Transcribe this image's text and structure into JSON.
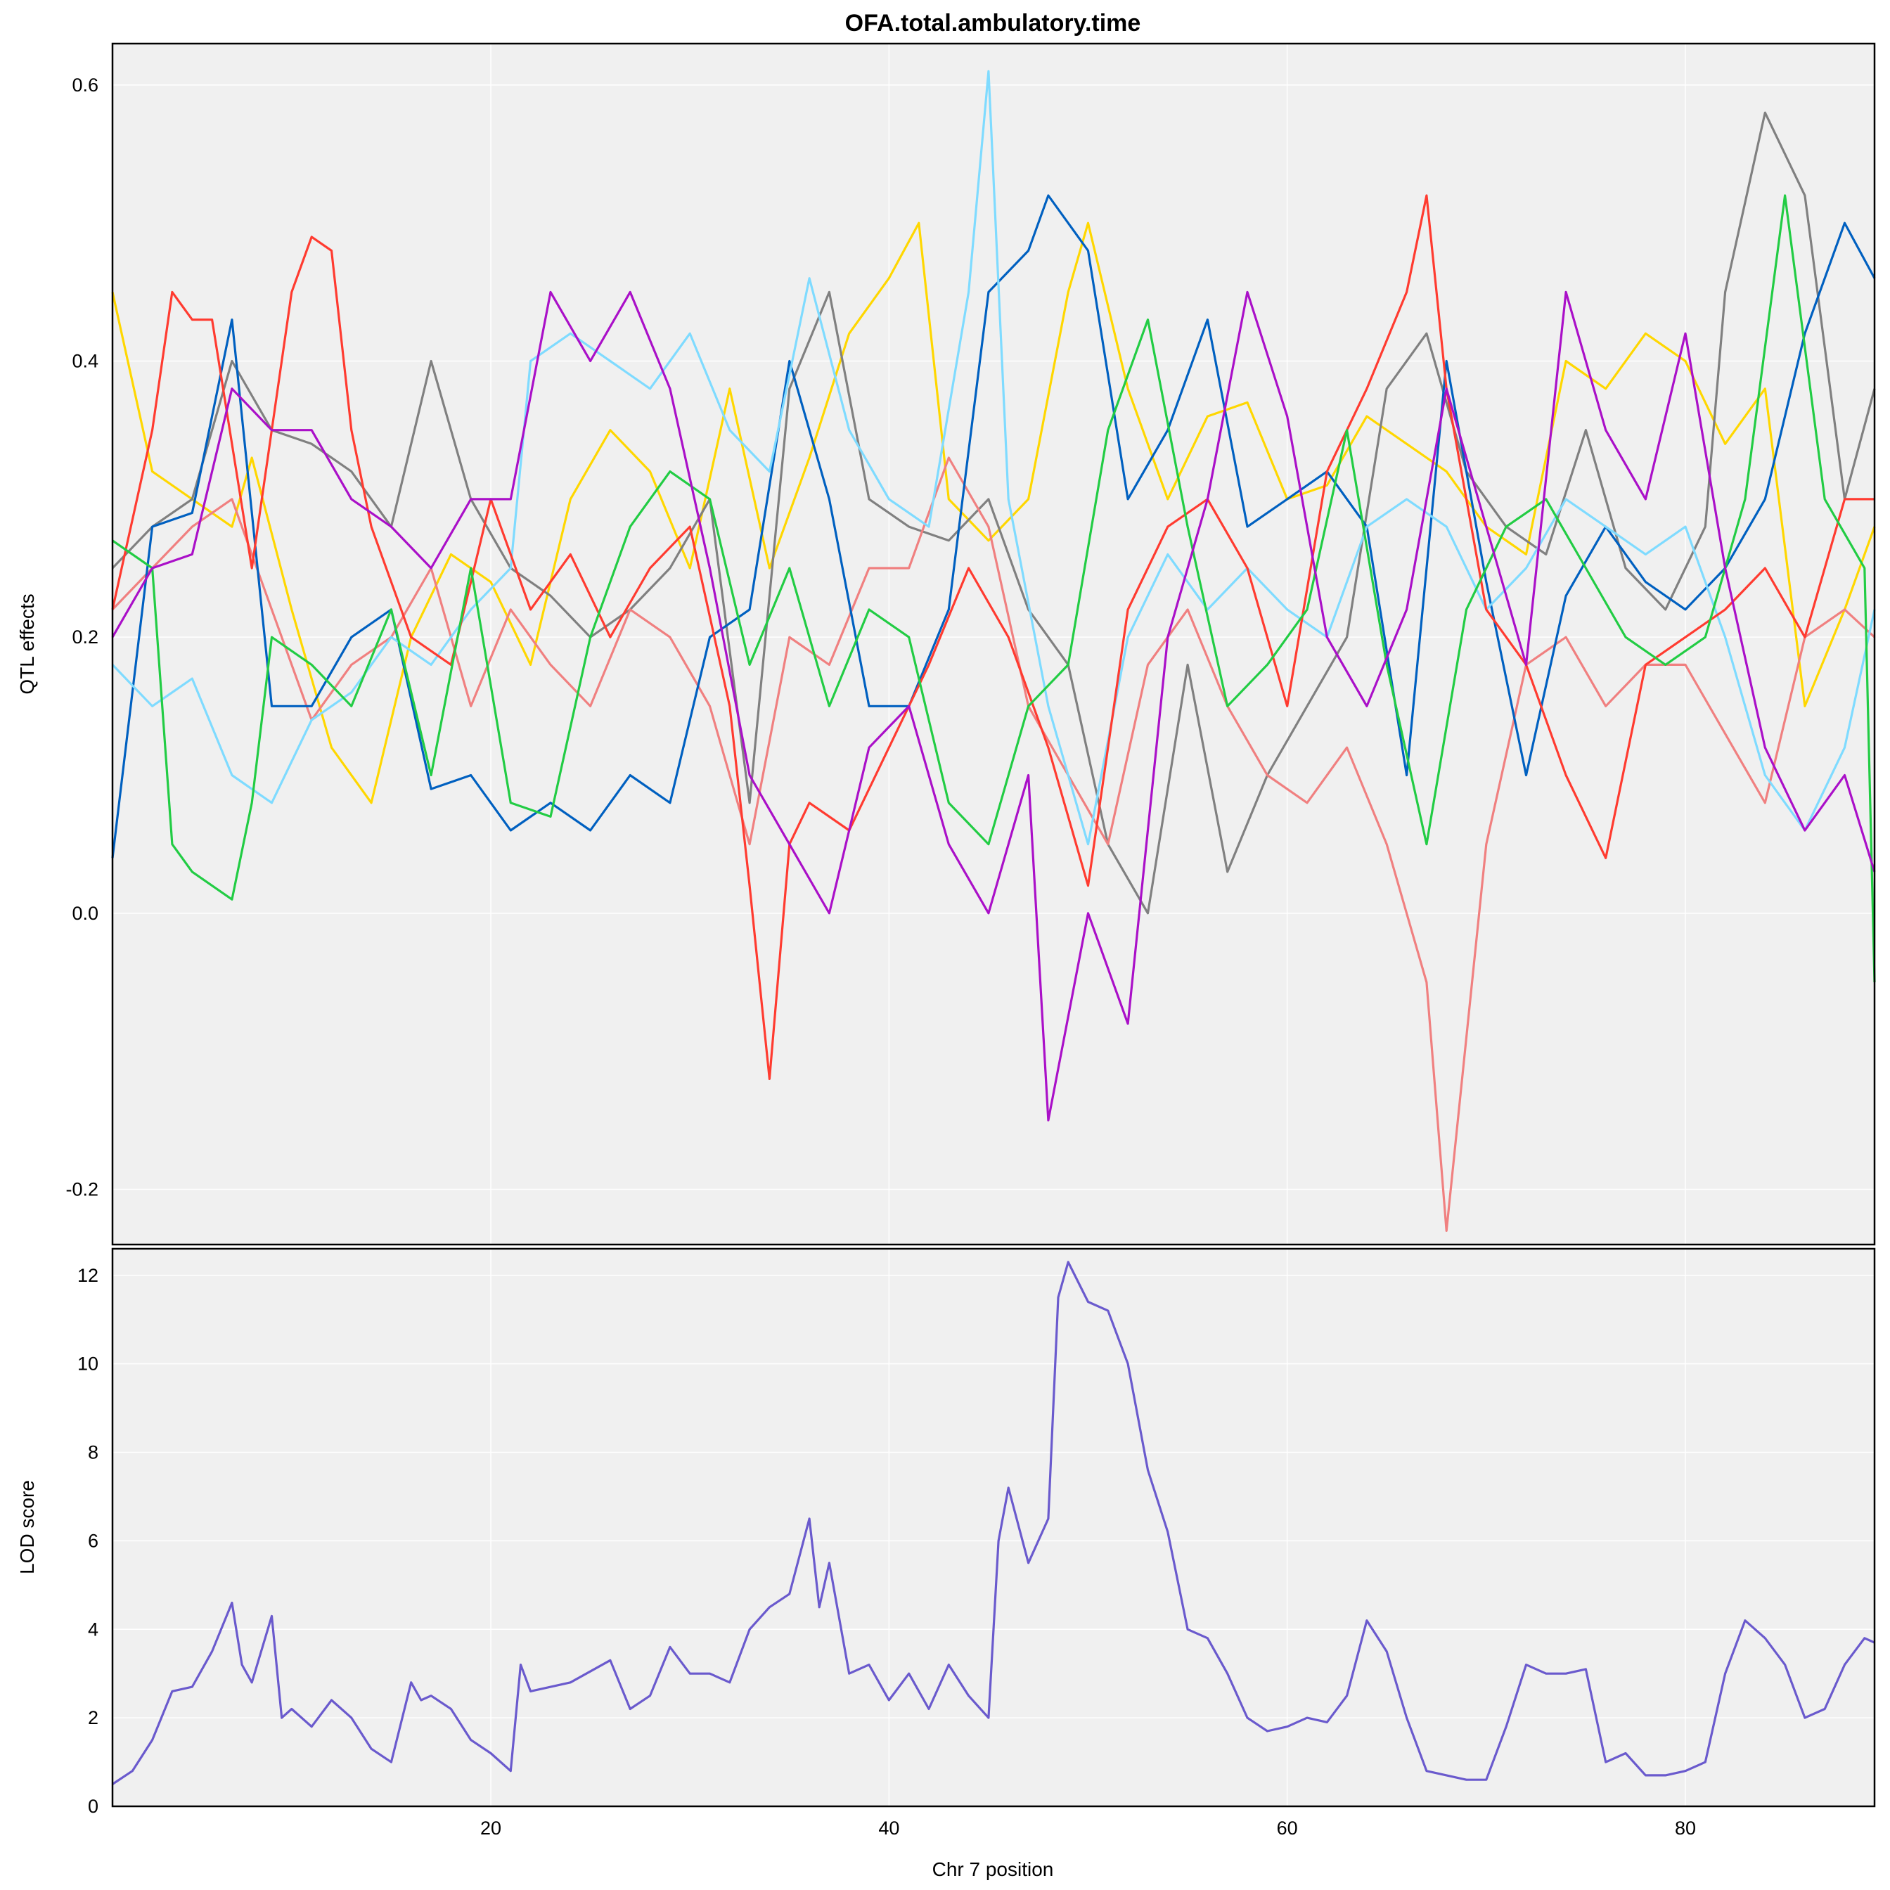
{
  "chart_data": [
    {
      "type": "line",
      "title": "OFA.total.ambulatory.time",
      "xlabel": "",
      "ylabel": "QTL effects",
      "xlim": [
        1,
        89.5
      ],
      "ylim": [
        -0.24,
        0.63
      ],
      "x_ticks": [
        20,
        40,
        60,
        80
      ],
      "y_ticks": [
        -0.2,
        0.0,
        0.2,
        0.4,
        0.6
      ],
      "y_tick_labels": [
        "-0.2",
        "0.0",
        "0.2",
        "0.4",
        "0.6"
      ],
      "grid": true,
      "background": "#f0f0f0",
      "series": [
        {
          "color": "#ffd700",
          "x": [
            1,
            3,
            5,
            7,
            8,
            10,
            12,
            14,
            16,
            18,
            20,
            22,
            24,
            26,
            28,
            30,
            32,
            34,
            36,
            38,
            40,
            41.5,
            43,
            45,
            47,
            49,
            50,
            52,
            54,
            56,
            58,
            60,
            62,
            64,
            66,
            68,
            70,
            72,
            74,
            76,
            78,
            80,
            82,
            84,
            86,
            88,
            89.5
          ],
          "y": [
            0.45,
            0.32,
            0.3,
            0.28,
            0.33,
            0.22,
            0.12,
            0.08,
            0.2,
            0.26,
            0.24,
            0.18,
            0.3,
            0.35,
            0.32,
            0.25,
            0.38,
            0.25,
            0.33,
            0.42,
            0.46,
            0.5,
            0.3,
            0.27,
            0.3,
            0.45,
            0.5,
            0.38,
            0.3,
            0.36,
            0.37,
            0.3,
            0.31,
            0.36,
            0.34,
            0.32,
            0.28,
            0.26,
            0.4,
            0.38,
            0.42,
            0.4,
            0.34,
            0.38,
            0.15,
            0.22,
            0.28
          ]
        },
        {
          "color": "#808080",
          "x": [
            1,
            3,
            5,
            7,
            9,
            11,
            13,
            15,
            17,
            19,
            21,
            23,
            25,
            27,
            29,
            31,
            33,
            35,
            37,
            39,
            41,
            43,
            45,
            47,
            49,
            51,
            53,
            55,
            57,
            59,
            61,
            63,
            65,
            67,
            69,
            71,
            73,
            75,
            77,
            79,
            81,
            82,
            84,
            86,
            88,
            89.5
          ],
          "y": [
            0.25,
            0.28,
            0.3,
            0.4,
            0.35,
            0.34,
            0.32,
            0.28,
            0.4,
            0.3,
            0.25,
            0.23,
            0.2,
            0.22,
            0.25,
            0.3,
            0.08,
            0.38,
            0.45,
            0.3,
            0.28,
            0.27,
            0.3,
            0.22,
            0.18,
            0.05,
            0.0,
            0.18,
            0.03,
            0.1,
            0.15,
            0.2,
            0.38,
            0.42,
            0.32,
            0.28,
            0.26,
            0.35,
            0.25,
            0.22,
            0.28,
            0.45,
            0.58,
            0.52,
            0.3,
            0.38
          ]
        },
        {
          "color": "#ffffff",
          "x": [],
          "y": []
        },
        {
          "color": "#f08080",
          "x": [
            1,
            3,
            5,
            7,
            9,
            11,
            13,
            15,
            17,
            19,
            21,
            23,
            25,
            27,
            29,
            31,
            33,
            35,
            37,
            39,
            41,
            43,
            45,
            47,
            49,
            51,
            53,
            55,
            57,
            59,
            61,
            63,
            65,
            67,
            68,
            70,
            72,
            74,
            76,
            78,
            80,
            82,
            84,
            86,
            88,
            89.5
          ],
          "y": [
            0.22,
            0.25,
            0.28,
            0.3,
            0.22,
            0.14,
            0.18,
            0.2,
            0.25,
            0.15,
            0.22,
            0.18,
            0.15,
            0.22,
            0.2,
            0.15,
            0.05,
            0.2,
            0.18,
            0.25,
            0.25,
            0.33,
            0.28,
            0.15,
            0.1,
            0.05,
            0.18,
            0.22,
            0.15,
            0.1,
            0.08,
            0.12,
            0.05,
            -0.05,
            -0.23,
            0.05,
            0.18,
            0.2,
            0.15,
            0.18,
            0.18,
            0.13,
            0.08,
            0.2,
            0.22,
            0.2
          ]
        },
        {
          "color": "#0060c0",
          "x": [
            1,
            3,
            5,
            7,
            9,
            11,
            13,
            15,
            17,
            19,
            21,
            23,
            25,
            27,
            29,
            31,
            33,
            35,
            37,
            39,
            41,
            43,
            45,
            47,
            48,
            50,
            52,
            54,
            56,
            58,
            60,
            62,
            64,
            66,
            68,
            70,
            72,
            74,
            76,
            78,
            80,
            82,
            84,
            86,
            88,
            89.5
          ],
          "y": [
            0.04,
            0.28,
            0.29,
            0.43,
            0.15,
            0.15,
            0.2,
            0.22,
            0.09,
            0.1,
            0.06,
            0.08,
            0.06,
            0.1,
            0.08,
            0.2,
            0.22,
            0.4,
            0.3,
            0.15,
            0.15,
            0.22,
            0.45,
            0.48,
            0.52,
            0.48,
            0.3,
            0.35,
            0.43,
            0.28,
            0.3,
            0.32,
            0.28,
            0.1,
            0.4,
            0.24,
            0.1,
            0.23,
            0.28,
            0.24,
            0.22,
            0.25,
            0.3,
            0.42,
            0.5,
            0.46
          ]
        },
        {
          "color": "#7fdbff",
          "x": [
            1,
            3,
            5,
            7,
            9,
            11,
            13,
            15,
            17,
            19,
            21,
            22,
            24,
            26,
            28,
            30,
            32,
            34,
            36,
            38,
            40,
            42,
            44,
            45,
            46,
            48,
            50,
            52,
            54,
            56,
            58,
            60,
            62,
            64,
            66,
            68,
            70,
            72,
            74,
            76,
            78,
            80,
            82,
            84,
            86,
            88,
            89.5
          ],
          "y": [
            0.18,
            0.15,
            0.17,
            0.1,
            0.08,
            0.14,
            0.16,
            0.2,
            0.18,
            0.22,
            0.25,
            0.4,
            0.42,
            0.4,
            0.38,
            0.42,
            0.35,
            0.32,
            0.46,
            0.35,
            0.3,
            0.28,
            0.45,
            0.61,
            0.3,
            0.15,
            0.05,
            0.2,
            0.26,
            0.22,
            0.25,
            0.22,
            0.2,
            0.28,
            0.3,
            0.28,
            0.22,
            0.25,
            0.3,
            0.28,
            0.26,
            0.28,
            0.2,
            0.1,
            0.06,
            0.12,
            0.22
          ]
        },
        {
          "color": "#ff3b30",
          "x": [
            1,
            3,
            4,
            5,
            6,
            8,
            10,
            11,
            12,
            13,
            14,
            16,
            18,
            20,
            22,
            24,
            26,
            28,
            30,
            32,
            33,
            34,
            35,
            36,
            38,
            40,
            42,
            44,
            46,
            48,
            50,
            52,
            54,
            56,
            58,
            60,
            62,
            64,
            66,
            67,
            68,
            70,
            72,
            74,
            76,
            78,
            80,
            82,
            84,
            86,
            88,
            89.5
          ],
          "y": [
            0.22,
            0.35,
            0.45,
            0.43,
            0.43,
            0.25,
            0.45,
            0.49,
            0.48,
            0.35,
            0.28,
            0.2,
            0.18,
            0.3,
            0.22,
            0.26,
            0.2,
            0.25,
            0.28,
            0.15,
            0.02,
            -0.12,
            0.05,
            0.08,
            0.06,
            0.12,
            0.18,
            0.25,
            0.2,
            0.12,
            0.02,
            0.22,
            0.28,
            0.3,
            0.25,
            0.15,
            0.32,
            0.38,
            0.45,
            0.52,
            0.38,
            0.22,
            0.18,
            0.1,
            0.04,
            0.18,
            0.2,
            0.22,
            0.25,
            0.2,
            0.3,
            0.3
          ]
        },
        {
          "color": "#22cc44",
          "x": [
            1,
            3,
            4,
            5,
            7,
            8,
            9,
            11,
            13,
            15,
            17,
            19,
            21,
            23,
            25,
            27,
            29,
            31,
            33,
            35,
            37,
            39,
            41,
            43,
            45,
            47,
            49,
            51,
            53,
            55,
            57,
            59,
            61,
            63,
            65,
            67,
            69,
            71,
            73,
            75,
            77,
            79,
            81,
            83,
            85,
            87,
            89,
            89.5
          ],
          "y": [
            0.27,
            0.25,
            0.05,
            0.03,
            0.01,
            0.08,
            0.2,
            0.18,
            0.15,
            0.22,
            0.1,
            0.25,
            0.08,
            0.07,
            0.2,
            0.28,
            0.32,
            0.3,
            0.18,
            0.25,
            0.15,
            0.22,
            0.2,
            0.08,
            0.05,
            0.15,
            0.18,
            0.35,
            0.43,
            0.28,
            0.15,
            0.18,
            0.22,
            0.35,
            0.18,
            0.05,
            0.22,
            0.28,
            0.3,
            0.25,
            0.2,
            0.18,
            0.2,
            0.3,
            0.52,
            0.3,
            0.25,
            -0.05
          ]
        },
        {
          "color": "#aa10c8",
          "x": [
            1,
            3,
            5,
            7,
            9,
            11,
            13,
            15,
            17,
            19,
            21,
            23,
            25,
            27,
            29,
            31,
            33,
            35,
            37,
            39,
            41,
            43,
            45,
            47,
            48,
            50,
            52,
            54,
            56,
            58,
            60,
            62,
            64,
            66,
            68,
            70,
            72,
            74,
            76,
            78,
            80,
            82,
            84,
            86,
            88,
            89.5
          ],
          "y": [
            0.2,
            0.25,
            0.26,
            0.38,
            0.35,
            0.35,
            0.3,
            0.28,
            0.25,
            0.3,
            0.3,
            0.45,
            0.4,
            0.45,
            0.38,
            0.25,
            0.1,
            0.05,
            0.0,
            0.12,
            0.15,
            0.05,
            0.0,
            0.1,
            -0.15,
            0.0,
            -0.08,
            0.2,
            0.3,
            0.45,
            0.36,
            0.2,
            0.15,
            0.22,
            0.38,
            0.28,
            0.18,
            0.45,
            0.35,
            0.3,
            0.42,
            0.25,
            0.12,
            0.06,
            0.1,
            0.03
          ]
        }
      ]
    },
    {
      "type": "line",
      "title": "",
      "xlabel": "Chr 7 position",
      "ylabel": "LOD score",
      "xlim": [
        1,
        89.5
      ],
      "ylim": [
        0,
        12.6
      ],
      "x_ticks": [
        20,
        40,
        60,
        80
      ],
      "y_ticks": [
        0,
        2,
        4,
        6,
        8,
        10,
        12
      ],
      "grid": true,
      "background": "#f0f0f0",
      "series": [
        {
          "color": "#6a5acd",
          "x": [
            1,
            2,
            3,
            4,
            5,
            6,
            7,
            7.5,
            8,
            9,
            9.5,
            10,
            11,
            12,
            13,
            14,
            15,
            16,
            16.5,
            17,
            18,
            19,
            20,
            21,
            21.5,
            22,
            24,
            26,
            27,
            28,
            29,
            30,
            31,
            32,
            33,
            34,
            35,
            36,
            36.5,
            37,
            38,
            39,
            40,
            41,
            42,
            43,
            44,
            45,
            45.5,
            46,
            47,
            48,
            48.5,
            49,
            50,
            51,
            52,
            53,
            54,
            55,
            56,
            57,
            58,
            59,
            60,
            61,
            62,
            63,
            64,
            65,
            66,
            67,
            68,
            69,
            70,
            71,
            72,
            73,
            74,
            75,
            76,
            77,
            78,
            79,
            80,
            81,
            82,
            83,
            84,
            85,
            86,
            87,
            88,
            89,
            89.5
          ],
          "y": [
            0.5,
            0.8,
            1.5,
            2.6,
            2.7,
            3.5,
            4.6,
            3.2,
            2.8,
            4.3,
            2.0,
            2.2,
            1.8,
            2.4,
            2.0,
            1.3,
            1.0,
            2.8,
            2.4,
            2.5,
            2.2,
            1.5,
            1.2,
            0.8,
            3.2,
            2.6,
            2.8,
            3.3,
            2.2,
            2.5,
            3.6,
            3.0,
            3.0,
            2.8,
            4.0,
            4.5,
            4.8,
            6.5,
            4.5,
            5.5,
            3.0,
            3.2,
            2.4,
            3.0,
            2.2,
            3.2,
            2.5,
            2.0,
            6.0,
            7.2,
            5.5,
            6.5,
            11.5,
            12.3,
            11.4,
            11.2,
            10.0,
            7.6,
            6.2,
            4.0,
            3.8,
            3.0,
            2.0,
            1.7,
            1.8,
            2.0,
            1.9,
            2.5,
            4.2,
            3.5,
            2.0,
            0.8,
            0.7,
            0.6,
            0.6,
            1.8,
            3.2,
            3.0,
            3.0,
            3.1,
            1.0,
            1.2,
            0.7,
            0.7,
            0.8,
            1.0,
            3.0,
            4.2,
            3.8,
            3.2,
            2.0,
            2.2,
            3.2,
            3.8,
            3.7
          ]
        }
      ]
    }
  ]
}
